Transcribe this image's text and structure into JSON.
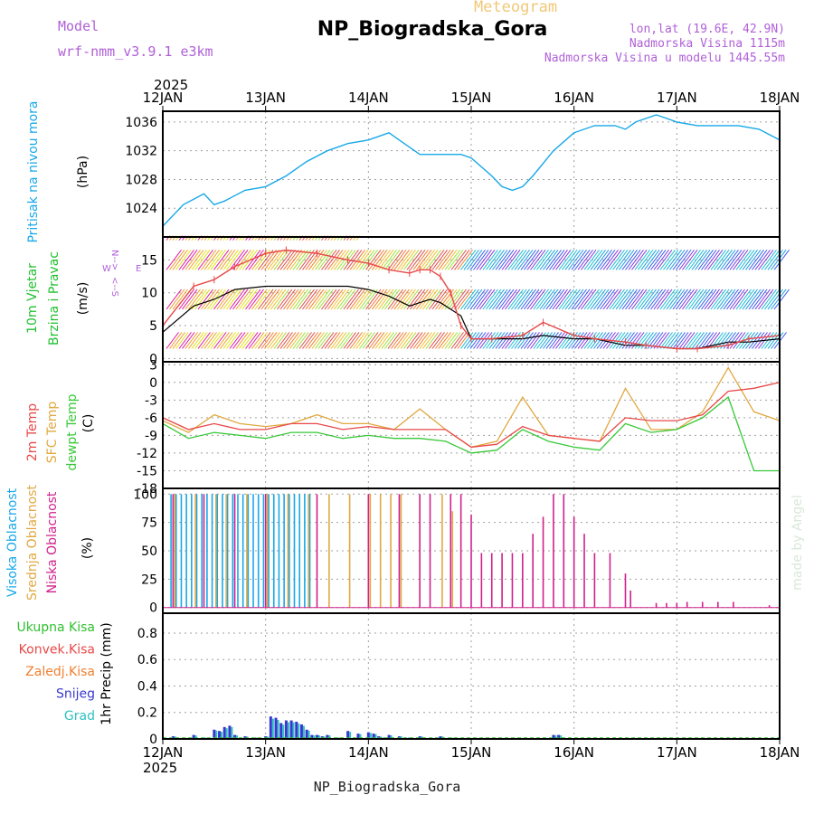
{
  "header": {
    "subtitle": "Meteogram",
    "title": "NP_Biogradska_Gora",
    "model_label": "Model",
    "model_name": "wrf-nmm_v3.9.1 e3km",
    "location": "lon,lat (19.6E, 42.9N)",
    "elevation": "Nadmorska Visina 1115m",
    "model_elevation": "Nadmorska Visina u modelu 1445.55m"
  },
  "footer": {
    "station": "NP_Biogradska_Gora"
  },
  "watermark": "made by Angel",
  "colors": {
    "pressure": "#18a8e8",
    "wind_speed": "#000000",
    "wind_gust": "#e84848",
    "temp2m": "#e84848",
    "sfc_temp": "#e0a840",
    "dewpoint": "#38c838",
    "high_cloud": "#18a8e8",
    "mid_cloud": "#e0a840",
    "low_cloud": "#d0208c",
    "total_precip": "#30c030",
    "conv_precip": "#e84848",
    "frozen_precip": "#f08030",
    "snow": "#3838d0",
    "graupel": "#30c0c0",
    "purple": "#b060d8",
    "grid": "#a0a0a0"
  },
  "chart_data": {
    "type": "line",
    "x_axis": {
      "year": "2025",
      "tick_labels": [
        "12JAN",
        "13JAN",
        "14JAN",
        "15JAN",
        "16JAN",
        "17JAN",
        "18JAN"
      ],
      "range_days": [
        0,
        6
      ]
    },
    "panels": [
      {
        "id": "pressure",
        "type": "line",
        "ylabel": [
          "Pritisak na nivou mora",
          "(hPa)"
        ],
        "ylim": [
          1020,
          1037.5
        ],
        "yticks": [
          1024,
          1028,
          1032,
          1036
        ],
        "series": [
          {
            "name": "sea level pressure",
            "x": [
              0,
              0.2,
              0.4,
              0.5,
              0.6,
              0.8,
              1.0,
              1.2,
              1.4,
              1.6,
              1.8,
              2.0,
              2.2,
              2.3,
              2.5,
              2.7,
              2.9,
              3.0,
              3.2,
              3.3,
              3.4,
              3.5,
              3.6,
              3.8,
              4.0,
              4.2,
              4.4,
              4.5,
              4.6,
              4.8,
              4.9,
              5.0,
              5.2,
              5.4,
              5.6,
              5.8,
              6.0
            ],
            "values": [
              1021.5,
              1024.5,
              1026,
              1024.5,
              1025,
              1026.5,
              1027,
              1028.5,
              1030.5,
              1032,
              1033,
              1033.5,
              1034.5,
              1033.5,
              1031.5,
              1031.5,
              1031.5,
              1031,
              1028.5,
              1027,
              1026.5,
              1027,
              1028.5,
              1032,
              1034.5,
              1035.5,
              1035.5,
              1035,
              1036,
              1037,
              1036.5,
              1036,
              1035.5,
              1035.5,
              1035.5,
              1035,
              1033.5
            ]
          }
        ]
      },
      {
        "id": "wind",
        "type": "line",
        "ylabel": [
          "10m Vjetar",
          "Brzina i Pravac",
          "(m/s)"
        ],
        "ylim": [
          -0.5,
          18.5
        ],
        "yticks": [
          0,
          5,
          10,
          15
        ],
        "series": [
          {
            "name": "wind speed",
            "x": [
              0,
              0.3,
              0.5,
              0.7,
              1.0,
              1.2,
              1.5,
              1.8,
              2.0,
              2.2,
              2.4,
              2.5,
              2.6,
              2.7,
              2.8,
              2.9,
              3.0,
              3.2,
              3.5,
              3.7,
              4.0,
              4.2,
              4.5,
              4.7,
              5.0,
              5.2,
              5.5,
              5.7,
              6.0
            ],
            "values": [
              4,
              8,
              9,
              10.5,
              11,
              11,
              11,
              11,
              10.5,
              9.5,
              8,
              8.5,
              9,
              8.5,
              7.5,
              6.5,
              3,
              3,
              3,
              3.5,
              3,
              3,
              2,
              2,
              1.5,
              1.5,
              2.5,
              2.5,
              3
            ]
          },
          {
            "name": "wind gust",
            "x": [
              0,
              0.3,
              0.5,
              0.7,
              1.0,
              1.2,
              1.5,
              1.8,
              2.0,
              2.2,
              2.4,
              2.5,
              2.6,
              2.7,
              2.8,
              2.9,
              3.0,
              3.2,
              3.5,
              3.7,
              4.0,
              4.2,
              4.5,
              4.7,
              5.0,
              5.2,
              5.5,
              5.7,
              6.0
            ],
            "values": [
              5,
              11,
              12,
              14,
              16,
              16.5,
              16,
              15,
              14.5,
              13.5,
              13,
              13.5,
              13.5,
              12.5,
              10,
              5,
              3,
              3,
              3.5,
              5.5,
              3.5,
              3,
              2.5,
              2,
              1.5,
              1.5,
              2,
              3,
              3.5
            ]
          }
        ],
        "barb_rows": [
          1.5,
          7.5,
          13.5,
          18
        ]
      },
      {
        "id": "temperature",
        "type": "line",
        "ylabel": [
          "2m Temp",
          "SFC Temp",
          "dewpt Temp",
          "(C)"
        ],
        "ylim": [
          -18,
          3.5
        ],
        "yticks": [
          3,
          0,
          -3,
          -6,
          -9,
          -12,
          -15,
          -18
        ],
        "series": [
          {
            "name": "2m Temp",
            "x": [
              0,
              0.25,
              0.5,
              0.75,
              1.0,
              1.25,
              1.5,
              1.75,
              2.0,
              2.25,
              2.5,
              2.75,
              3.0,
              3.25,
              3.5,
              3.75,
              4.0,
              4.25,
              4.5,
              4.75,
              5.0,
              5.25,
              5.5,
              5.75,
              6.0
            ],
            "values": [
              -6,
              -8,
              -7,
              -8,
              -8,
              -7,
              -7,
              -8,
              -7.5,
              -8,
              -8,
              -8,
              -11,
              -10.5,
              -7.5,
              -9,
              -9.5,
              -10,
              -6,
              -6.5,
              -6.5,
              -5.5,
              -1.5,
              -1,
              0
            ]
          },
          {
            "name": "SFC Temp",
            "x": [
              0,
              0.25,
              0.5,
              0.75,
              1.0,
              1.25,
              1.5,
              1.75,
              2.0,
              2.25,
              2.5,
              2.75,
              3.0,
              3.25,
              3.5,
              3.75,
              4.0,
              4.25,
              4.5,
              4.75,
              5.0,
              5.25,
              5.5,
              5.75,
              6.0
            ],
            "values": [
              -6.5,
              -8.5,
              -5.5,
              -7,
              -7.5,
              -7,
              -5.5,
              -7,
              -7,
              -8,
              -4.5,
              -8,
              -11,
              -10,
              -2.5,
              -9,
              -9.5,
              -10,
              -1,
              -8,
              -8,
              -5,
              2.5,
              -5,
              -6.5
            ]
          },
          {
            "name": "dewpt Temp",
            "x": [
              0,
              0.25,
              0.5,
              0.75,
              1.0,
              1.25,
              1.5,
              1.75,
              2.0,
              2.25,
              2.5,
              2.75,
              3.0,
              3.25,
              3.5,
              3.75,
              4.0,
              4.25,
              4.5,
              4.75,
              5.0,
              5.25,
              5.5,
              5.75,
              6.0
            ],
            "values": [
              -7,
              -9.5,
              -8.5,
              -9,
              -9.5,
              -8.5,
              -8.5,
              -9.5,
              -9,
              -9.5,
              -9.5,
              -10,
              -12,
              -11.5,
              -8,
              -10,
              -11,
              -11.5,
              -7,
              -8.5,
              -8,
              -6,
              -2.5,
              -15,
              -15
            ]
          }
        ]
      },
      {
        "id": "clouds",
        "type": "bar",
        "ylabel": [
          "Visoka Oblacnost",
          "Srednja Oblacnost",
          "Niska Oblacnost",
          "(%)"
        ],
        "ylim": [
          -5,
          105
        ],
        "yticks": [
          0,
          25,
          50,
          75,
          100
        ],
        "series": [
          {
            "name": "Visoka Oblacnost",
            "x_range": [
              0.08,
              1.45
            ],
            "values_note": "100"
          },
          {
            "name": "Srednja Oblacnost",
            "points": [
              [
                0.1,
                100
              ],
              [
                0.3,
                100
              ],
              [
                0.5,
                100
              ],
              [
                0.6,
                100
              ],
              [
                0.8,
                100
              ],
              [
                1.0,
                100
              ],
              [
                1.2,
                100
              ],
              [
                1.4,
                100
              ],
              [
                1.6,
                100
              ],
              [
                1.8,
                100
              ],
              [
                2.0,
                100
              ],
              [
                2.1,
                100
              ],
              [
                2.2,
                100
              ],
              [
                2.3,
                100
              ],
              [
                2.7,
                100
              ],
              [
                2.8,
                85
              ]
            ]
          },
          {
            "name": "Niska Oblacnost",
            "points": [
              [
                0.1,
                100
              ],
              [
                0.4,
                100
              ],
              [
                0.7,
                100
              ],
              [
                1.0,
                100
              ],
              [
                1.5,
                100
              ],
              [
                2.0,
                100
              ],
              [
                2.3,
                100
              ],
              [
                2.5,
                100
              ],
              [
                2.6,
                100
              ],
              [
                2.8,
                100
              ],
              [
                2.9,
                100
              ],
              [
                3.0,
                82
              ],
              [
                3.1,
                48
              ],
              [
                3.2,
                48
              ],
              [
                3.3,
                48
              ],
              [
                3.4,
                48
              ],
              [
                3.5,
                48
              ],
              [
                3.6,
                65
              ],
              [
                3.7,
                80
              ],
              [
                3.8,
                100
              ],
              [
                3.9,
                100
              ],
              [
                4.0,
                80
              ],
              [
                4.1,
                65
              ],
              [
                4.2,
                48
              ],
              [
                4.35,
                48
              ],
              [
                4.5,
                30
              ],
              [
                4.55,
                15
              ],
              [
                4.8,
                4
              ],
              [
                4.9,
                4
              ],
              [
                5.0,
                4
              ],
              [
                5.1,
                5
              ],
              [
                5.25,
                5
              ],
              [
                5.4,
                5
              ],
              [
                5.55,
                5
              ],
              [
                5.9,
                2
              ]
            ]
          }
        ]
      },
      {
        "id": "precip",
        "type": "bar",
        "ylabel": [
          "1hr Precip (mm)"
        ],
        "ylim": [
          0,
          0.95
        ],
        "yticks": [
          0,
          0.2,
          0.4,
          0.6,
          0.8
        ],
        "legend": [
          "Ukupna Kisa",
          "Konvek.Kisa",
          "Zaledj.Kisa",
          "Snijeg",
          "Grad"
        ],
        "series": [
          {
            "name": "Snijeg",
            "x": [
              0.1,
              0.2,
              0.3,
              0.4,
              0.5,
              0.55,
              0.6,
              0.65,
              0.7,
              0.8,
              0.9,
              1.0,
              1.05,
              1.1,
              1.15,
              1.2,
              1.25,
              1.3,
              1.35,
              1.4,
              1.45,
              1.5,
              1.55,
              1.6,
              1.7,
              1.8,
              1.9,
              2.0,
              2.05,
              2.1,
              2.15,
              2.2,
              2.3,
              2.4,
              2.5,
              2.6,
              2.7,
              2.8,
              3.8,
              3.85
            ],
            "values": [
              0.02,
              0.01,
              0.03,
              0.01,
              0.07,
              0.06,
              0.09,
              0.1,
              0.03,
              0.02,
              0.01,
              0.02,
              0.17,
              0.16,
              0.12,
              0.14,
              0.14,
              0.13,
              0.11,
              0.07,
              0.03,
              0.03,
              0.02,
              0.03,
              0.01,
              0.06,
              0.04,
              0.05,
              0.04,
              0.02,
              0.01,
              0.03,
              0.02,
              0.01,
              0.02,
              0.01,
              0.02,
              0.01,
              0.03,
              0.03
            ]
          }
        ]
      }
    ]
  }
}
